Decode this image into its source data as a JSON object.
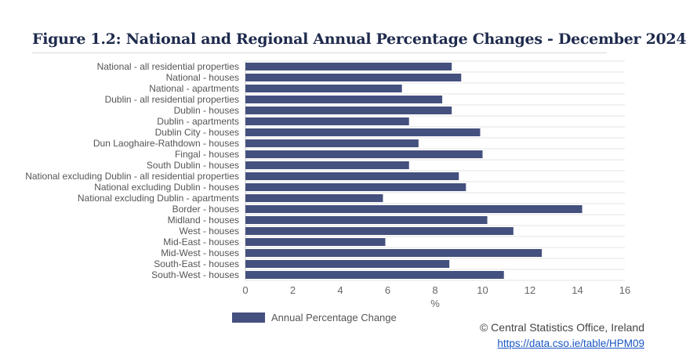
{
  "title": "Figure 1.2: National and Regional Annual Percentage Changes - December 2024",
  "chart_data": {
    "type": "bar",
    "orientation": "horizontal",
    "categories": [
      "National - all residential properties",
      "National - houses",
      "National - apartments",
      "Dublin - all residential properties",
      "Dublin - houses",
      "Dublin - apartments",
      "Dublin City - houses",
      "Dun Laoghaire-Rathdown - houses",
      "Fingal - houses",
      "South Dublin - houses",
      "National excluding Dublin - all residential properties",
      "National excluding Dublin - houses",
      "National excluding Dublin - apartments",
      "Border - houses",
      "Midland - houses",
      "West - houses",
      "Mid-East - houses",
      "Mid-West - houses",
      "South-East - houses",
      "South-West - houses"
    ],
    "series": [
      {
        "name": "Annual Percentage Change",
        "values": [
          8.7,
          9.1,
          6.6,
          8.3,
          8.7,
          6.9,
          9.9,
          7.3,
          10.0,
          6.9,
          9.0,
          9.3,
          5.8,
          14.2,
          10.2,
          11.3,
          5.9,
          12.5,
          8.6,
          10.9
        ],
        "color": "#44507e"
      }
    ],
    "xlabel": "%",
    "xlim": [
      0,
      16
    ],
    "xticks": [
      "0",
      "2",
      "4",
      "6",
      "8",
      "10",
      "12",
      "14",
      "16"
    ],
    "grid": true,
    "legend_placement": "bottom"
  },
  "credit": "© Central Statistics Office, Ireland",
  "link": "https://data.cso.ie/table/HPM09"
}
